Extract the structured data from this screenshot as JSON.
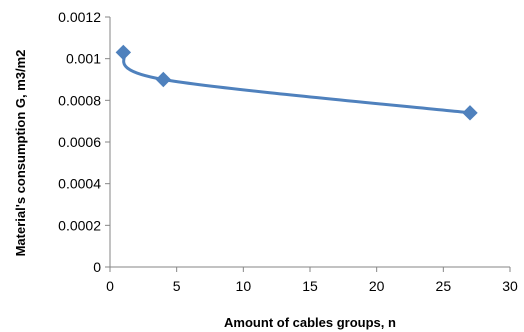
{
  "chart_data": {
    "type": "line",
    "title": "",
    "xlabel": "Amount of cables groups,  n",
    "ylabel": "Material's consumption G, m3/m2",
    "xlim": [
      0,
      30
    ],
    "ylim": [
      0,
      0.0012
    ],
    "xticks": [
      0,
      5,
      10,
      15,
      20,
      25,
      30
    ],
    "yticks": [
      0,
      0.0002,
      0.0004,
      0.0006,
      0.0008,
      0.001,
      0.0012
    ],
    "xtick_labels": [
      "0",
      "5",
      "10",
      "15",
      "20",
      "25",
      "30"
    ],
    "ytick_labels": [
      "0",
      "0.0002",
      "0.0004",
      "0.0006",
      "0.0008",
      "0.001",
      "0.0012"
    ],
    "grid": false,
    "legend": "none",
    "smooth": true,
    "marker": "diamond",
    "series": [
      {
        "x": [
          1,
          4,
          27
        ],
        "y": [
          0.00103,
          0.0009,
          0.00074
        ],
        "color": "#4F81BD"
      }
    ]
  }
}
